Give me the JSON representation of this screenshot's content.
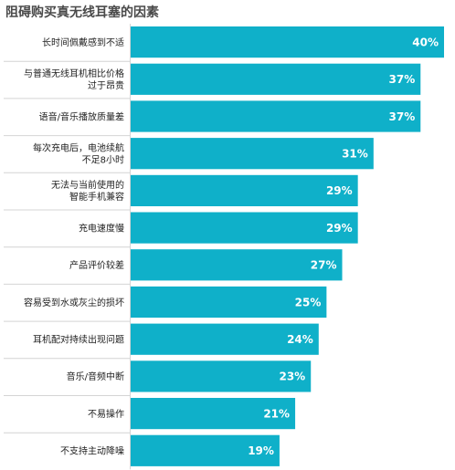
{
  "chart_data": {
    "type": "bar",
    "orientation": "horizontal",
    "title": "阻碍购买真无线耳塞的因素",
    "categories": [
      [
        "长时间佩戴感到不适"
      ],
      [
        "与普通无线耳机相比价格",
        "过于昂贵"
      ],
      [
        "语音/音乐播放质量差"
      ],
      [
        "每次充电后，电池续航",
        "不足8小时"
      ],
      [
        "无法与当前使用的",
        "智能手机兼容"
      ],
      [
        "充电速度慢"
      ],
      [
        "产品评价较差"
      ],
      [
        "容易受到水或灰尘的损坏"
      ],
      [
        "耳机配对持续出现问题"
      ],
      [
        "音乐/音频中断"
      ],
      [
        "不易操作"
      ],
      [
        "不支持主动降噪"
      ]
    ],
    "values": [
      40,
      37,
      37,
      31,
      29,
      29,
      27,
      25,
      24,
      23,
      21,
      19
    ],
    "value_labels": [
      "40%",
      "37%",
      "37%",
      "31%",
      "29%",
      "29%",
      "27%",
      "25%",
      "24%",
      "23%",
      "21%",
      "19%"
    ],
    "xlim": [
      0,
      40
    ],
    "grid": false,
    "legend": "none",
    "bar_color": "#0fb0c9",
    "separator_color": "#d4d4d4"
  }
}
